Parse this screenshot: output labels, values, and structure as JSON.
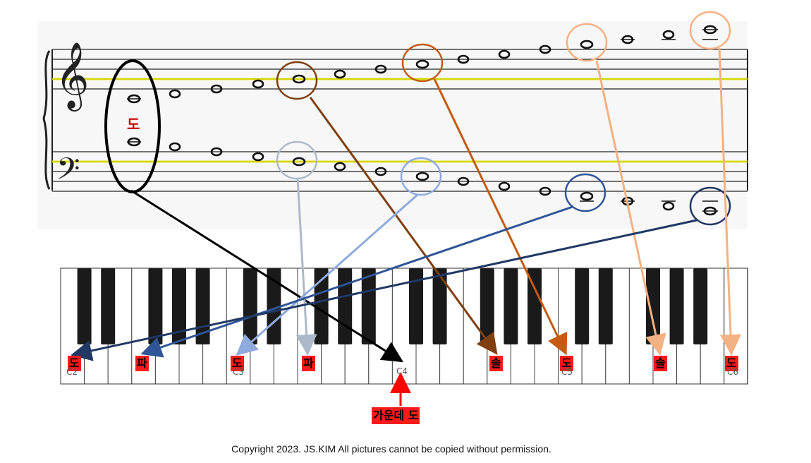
{
  "colors": {
    "black_group": "#000000",
    "dark_brown": "#7f3f10",
    "orange_brown": "#c55a11",
    "light_orange": "#f4b183",
    "pale_blue": "#adb9ca",
    "light_blue": "#8faadc",
    "mid_blue": "#2f5597",
    "dark_blue": "#203864",
    "guide_line": "#e6e600",
    "label_bg": "#ff1a1a"
  },
  "staff": {
    "center_label": "도"
  },
  "keyboard": {
    "labels": [
      {
        "text": "도",
        "name": "label-do-c2"
      },
      {
        "text": "파",
        "name": "label-fa-f2"
      },
      {
        "text": "도",
        "name": "label-do-c3"
      },
      {
        "text": "파",
        "name": "label-fa-f3"
      },
      {
        "text": "솔",
        "name": "label-sol-g4"
      },
      {
        "text": "도",
        "name": "label-do-c5"
      },
      {
        "text": "솔",
        "name": "label-sol-g5"
      },
      {
        "text": "도",
        "name": "label-do-c6"
      }
    ],
    "octave_labels": [
      "C2",
      "C3",
      "C4",
      "C5",
      "C6"
    ]
  },
  "middle_c": {
    "label": "가운데 도"
  },
  "copyright": "Copyright 2023. JS.KIM All pictures cannot be copied without permission."
}
